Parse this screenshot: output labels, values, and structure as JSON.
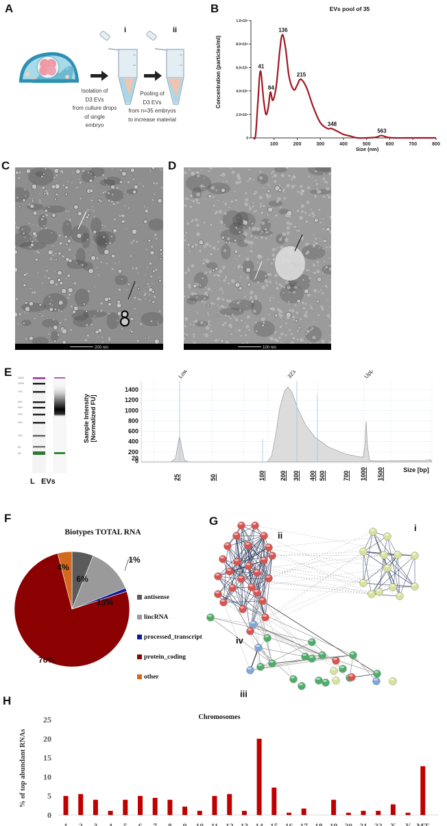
{
  "panels": {
    "A": {
      "letter": "A",
      "tube_labels": [
        "i",
        "ii"
      ],
      "step1_text": [
        "Isolation of",
        "D3 EVs",
        "from culture drops",
        "of single",
        "embryo"
      ],
      "step2_text": [
        "Pooling of",
        "D3 EVs",
        "from n=35 embryos",
        "to increase material"
      ]
    },
    "B": {
      "letter": "B"
    },
    "C": {
      "letter": "C",
      "scale_label": "200 nm"
    },
    "D": {
      "letter": "D",
      "scale_label": "100 nm"
    },
    "E": {
      "letter": "E",
      "gel_ladder_labels": [
        "1500",
        "1000",
        "700",
        "500",
        "400",
        "300",
        "200",
        "100",
        "50",
        "25"
      ],
      "gel_lane_labels": [
        "L",
        "EVs"
      ],
      "marker_labels": [
        "Lower",
        "323",
        "Upper"
      ]
    },
    "F": {
      "letter": "F"
    },
    "G": {
      "letter": "G",
      "cluster_labels": [
        "i",
        "ii",
        "iii",
        "iv"
      ],
      "colors": {
        "red": "#d9534f",
        "yellow": "#d7e39a",
        "green": "#4cae6a",
        "blue": "#7fa6d9"
      }
    },
    "H": {
      "letter": "H"
    }
  },
  "chart_data": [
    {
      "id": "B",
      "type": "line",
      "title": "EVs pool of 35",
      "xlabel": "Size (nm)",
      "ylabel": "Concentration (particles/ml)",
      "xlim": [
        0,
        800
      ],
      "ylim": [
        0,
        10000000
      ],
      "x_ticks": [
        "100",
        "200",
        "300",
        "400",
        "500",
        "600",
        "700",
        "800"
      ],
      "y_ticks": [
        "0",
        "2.0×10⁶",
        "4.0×10⁶",
        "6.0×10⁶",
        "8.0×10⁶",
        "1.0×10⁷"
      ],
      "peak_labels": [
        "41",
        "84",
        "136",
        "215",
        "348",
        "563"
      ],
      "peaks": [
        {
          "x": 41,
          "y": 5700000
        },
        {
          "x": 84,
          "y": 3900000
        },
        {
          "x": 136,
          "y": 8800000
        },
        {
          "x": 215,
          "y": 5000000
        },
        {
          "x": 348,
          "y": 800000
        },
        {
          "x": 563,
          "y": 200000
        }
      ],
      "x": [
        10,
        20,
        30,
        41,
        55,
        65,
        75,
        84,
        95,
        110,
        125,
        136,
        150,
        165,
        185,
        200,
        215,
        240,
        270,
        300,
        330,
        348,
        370,
        400,
        430,
        460,
        500,
        540,
        563,
        590,
        620,
        700,
        800
      ],
      "values": [
        0,
        200000,
        3000000,
        5700000,
        3200000,
        2000000,
        2600000,
        3900000,
        3200000,
        4500000,
        7500000,
        8800000,
        7600000,
        5200000,
        4100000,
        4500000,
        5000000,
        4300000,
        2600000,
        1300000,
        800000,
        800000,
        600000,
        300000,
        150000,
        0,
        0,
        50000,
        200000,
        50000,
        0,
        0,
        0
      ],
      "line_color": "#a01520"
    },
    {
      "id": "E",
      "type": "area",
      "ylabel": "Sample Intensity [Normalized FU]",
      "xlabel": "Size [bp]",
      "y_ticks": [
        "1400",
        "1200",
        "1000",
        "800",
        "600",
        "400",
        "200",
        "20",
        "0"
      ],
      "x_ticks": [
        "25",
        "50",
        "100",
        "200",
        "300",
        "400",
        "500",
        "700",
        "1000",
        "1500"
      ],
      "peaks": [
        {
          "label": "Lower",
          "x": 25,
          "y": 380
        },
        {
          "label": "323",
          "x": 323,
          "y": 1340
        },
        {
          "label": "Upper",
          "x": 1500,
          "y": 500
        }
      ],
      "ylim": [
        0,
        1400
      ]
    },
    {
      "id": "F",
      "type": "pie",
      "title": "Biotypes TOTAL RNA",
      "categories": [
        "antisense",
        "lincRNA",
        "processed_transcript",
        "protein_coding",
        "other"
      ],
      "values": [
        6,
        13,
        1,
        76,
        4
      ],
      "value_labels": [
        "6%",
        "13%",
        "1%",
        "76%",
        "4%"
      ],
      "colors": [
        "#5a5a5a",
        "#9a9a9a",
        "#10189a",
        "#8b0000",
        "#d2691e"
      ],
      "legend_position": "right"
    },
    {
      "id": "H",
      "type": "bar",
      "title": "Chromosomes",
      "ylabel": "% of top abundant RNAs",
      "categories": [
        "1",
        "2",
        "3",
        "4",
        "5",
        "6",
        "7",
        "8",
        "9",
        "10",
        "11",
        "12",
        "13",
        "14",
        "15",
        "16",
        "17",
        "18",
        "19",
        "20",
        "21",
        "22",
        "X",
        "Y",
        "MT"
      ],
      "values": [
        5,
        5.5,
        4,
        1.1,
        4,
        5,
        4.5,
        4,
        2.2,
        1.1,
        5,
        5.5,
        1.1,
        20,
        7.2,
        0.6,
        1.7,
        0,
        4,
        0.6,
        1.1,
        1.1,
        2.8,
        0.6,
        12.8
      ],
      "ylim": [
        0,
        25
      ],
      "y_ticks": [
        "0",
        "5",
        "10",
        "15",
        "20",
        "25"
      ],
      "bar_color": "#c00000"
    }
  ]
}
